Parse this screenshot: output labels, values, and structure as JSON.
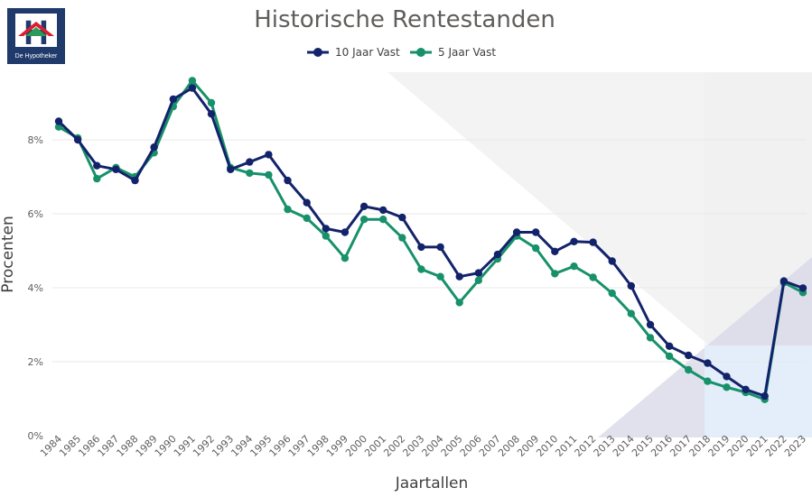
{
  "logo": {
    "letter": "H",
    "caption": "De Hypotheker",
    "bg_color": "#1f3a6b"
  },
  "chart_data": {
    "type": "line",
    "title": "Historische Rentestanden",
    "xlabel": "Jaartallen",
    "ylabel": "Procenten",
    "ylim": [
      0,
      10
    ],
    "yticks": [
      0,
      2,
      4,
      6,
      8
    ],
    "ytick_labels": [
      "0%",
      "2%",
      "4%",
      "6%",
      "8%"
    ],
    "grid": true,
    "legend_position": "top-center",
    "categories": [
      "1984",
      "1985",
      "1986",
      "1987",
      "1988",
      "1989",
      "1990",
      "1991",
      "1992",
      "1993",
      "1994",
      "1995",
      "1996",
      "1997",
      "1998",
      "1999",
      "2000",
      "2001",
      "2002",
      "2003",
      "2004",
      "2005",
      "2006",
      "2007",
      "2008",
      "2009",
      "2010",
      "2011",
      "2012",
      "2013",
      "2014",
      "2015",
      "2016",
      "2017",
      "2018",
      "2019",
      "2020",
      "2021",
      "2022",
      "2023"
    ],
    "series": [
      {
        "name": "10 Jaar Vast",
        "color": "#13236b",
        "values": [
          8.5,
          8.0,
          7.3,
          7.2,
          6.9,
          7.8,
          9.1,
          9.4,
          8.7,
          7.2,
          7.4,
          7.6,
          6.9,
          6.3,
          5.6,
          5.5,
          6.2,
          6.1,
          5.9,
          5.1,
          5.1,
          4.3,
          4.4,
          4.9,
          5.5,
          5.5,
          4.98,
          5.25,
          5.23,
          4.72,
          4.05,
          3.0,
          2.42,
          2.17,
          1.96,
          1.6,
          1.25,
          1.07,
          4.18,
          3.99
        ]
      },
      {
        "name": "5 Jaar Vast",
        "color": "#17916a",
        "values": [
          8.35,
          8.05,
          6.95,
          7.25,
          7.0,
          7.65,
          8.9,
          9.6,
          9.0,
          7.25,
          7.1,
          7.05,
          6.12,
          5.88,
          5.4,
          4.8,
          5.85,
          5.85,
          5.35,
          4.5,
          4.3,
          3.6,
          4.2,
          4.78,
          5.4,
          5.07,
          4.38,
          4.58,
          4.28,
          3.85,
          3.3,
          2.65,
          2.15,
          1.78,
          1.47,
          1.31,
          1.17,
          0.98,
          4.14,
          3.87
        ]
      }
    ]
  }
}
